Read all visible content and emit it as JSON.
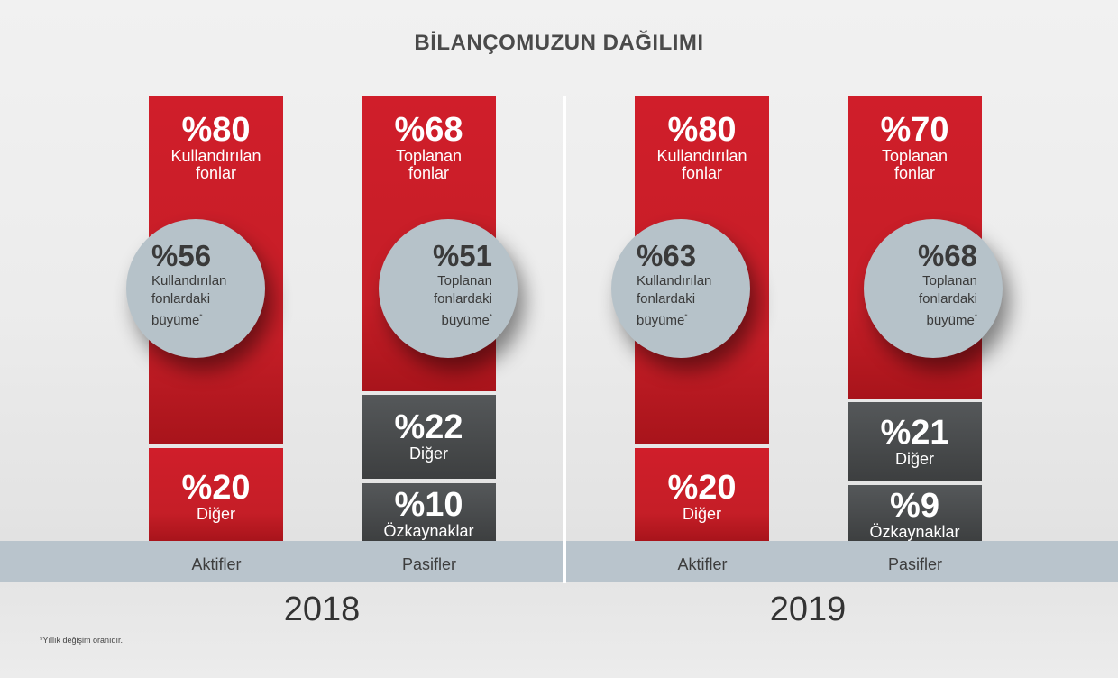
{
  "title": "BİLANÇOMUZUN DAĞILIMI",
  "footnote": "*Yıllık değişim oranıdır.",
  "colors": {
    "red": "#c51e27",
    "dark": "#454748",
    "circle": "#b6c2c9",
    "band": "#b9c4cc"
  },
  "chart_data": [
    {
      "type": "bar",
      "year": "2018",
      "stacked": true,
      "categories": [
        "Aktifler",
        "Pasifler"
      ],
      "series": [
        {
          "name": "Kullandırılan fonlar",
          "values": [
            80,
            0
          ]
        },
        {
          "name": "Toplanan fonlar",
          "values": [
            0,
            68
          ]
        },
        {
          "name": "Diğer",
          "values": [
            20,
            22
          ]
        },
        {
          "name": "Özkaynaklar",
          "values": [
            0,
            10
          ]
        }
      ],
      "annotations": [
        {
          "value": "%56",
          "text": [
            "Kullandırılan",
            "fonlardaki",
            "büyüme*"
          ]
        },
        {
          "value": "%51",
          "text": [
            "Toplanan",
            "fonlardaki",
            "büyüme*"
          ]
        }
      ]
    },
    {
      "type": "bar",
      "year": "2019",
      "stacked": true,
      "categories": [
        "Aktifler",
        "Pasifler"
      ],
      "series": [
        {
          "name": "Kullandırılan fonlar",
          "values": [
            80,
            0
          ]
        },
        {
          "name": "Toplanan fonlar",
          "values": [
            0,
            70
          ]
        },
        {
          "name": "Diğer",
          "values": [
            20,
            21
          ]
        },
        {
          "name": "Özkaynaklar",
          "values": [
            0,
            9
          ]
        }
      ],
      "annotations": [
        {
          "value": "%63",
          "text": [
            "Kullandırılan",
            "fonlardaki",
            "büyüme*"
          ]
        },
        {
          "value": "%68",
          "text": [
            "Toplanan",
            "fonlardaki",
            "büyüme*"
          ]
        }
      ]
    }
  ],
  "panels": [
    {
      "year": "2018",
      "aktifler": {
        "label": "Aktifler",
        "main": {
          "pct": "%80",
          "line1": "Kullandırılan",
          "line2": "fonlar"
        },
        "other": {
          "pct": "%20",
          "line1": "Diğer"
        },
        "circle": {
          "pct": "%56",
          "line1": "Kullandırılan",
          "line2": "fonlardaki",
          "line3": "büyüme"
        }
      },
      "pasifler": {
        "label": "Pasifler",
        "main": {
          "pct": "%68",
          "line1": "Toplanan",
          "line2": "fonlar"
        },
        "other": {
          "pct": "%22",
          "line1": "Diğer"
        },
        "equity": {
          "pct": "%10",
          "line1": "Özkaynaklar"
        },
        "circle": {
          "pct": "%51",
          "line1": "Toplanan",
          "line2": "fonlardaki",
          "line3": "büyüme"
        }
      }
    },
    {
      "year": "2019",
      "aktifler": {
        "label": "Aktifler",
        "main": {
          "pct": "%80",
          "line1": "Kullandırılan",
          "line2": "fonlar"
        },
        "other": {
          "pct": "%20",
          "line1": "Diğer"
        },
        "circle": {
          "pct": "%63",
          "line1": "Kullandırılan",
          "line2": "fonlardaki",
          "line3": "büyüme"
        }
      },
      "pasifler": {
        "label": "Pasifler",
        "main": {
          "pct": "%70",
          "line1": "Toplanan",
          "line2": "fonlar"
        },
        "other": {
          "pct": "%21",
          "line1": "Diğer"
        },
        "equity": {
          "pct": "%9",
          "line1": "Özkaynaklar"
        },
        "circle": {
          "pct": "%68",
          "line1": "Toplanan",
          "line2": "fonlardaki",
          "line3": "büyüme"
        }
      }
    }
  ]
}
